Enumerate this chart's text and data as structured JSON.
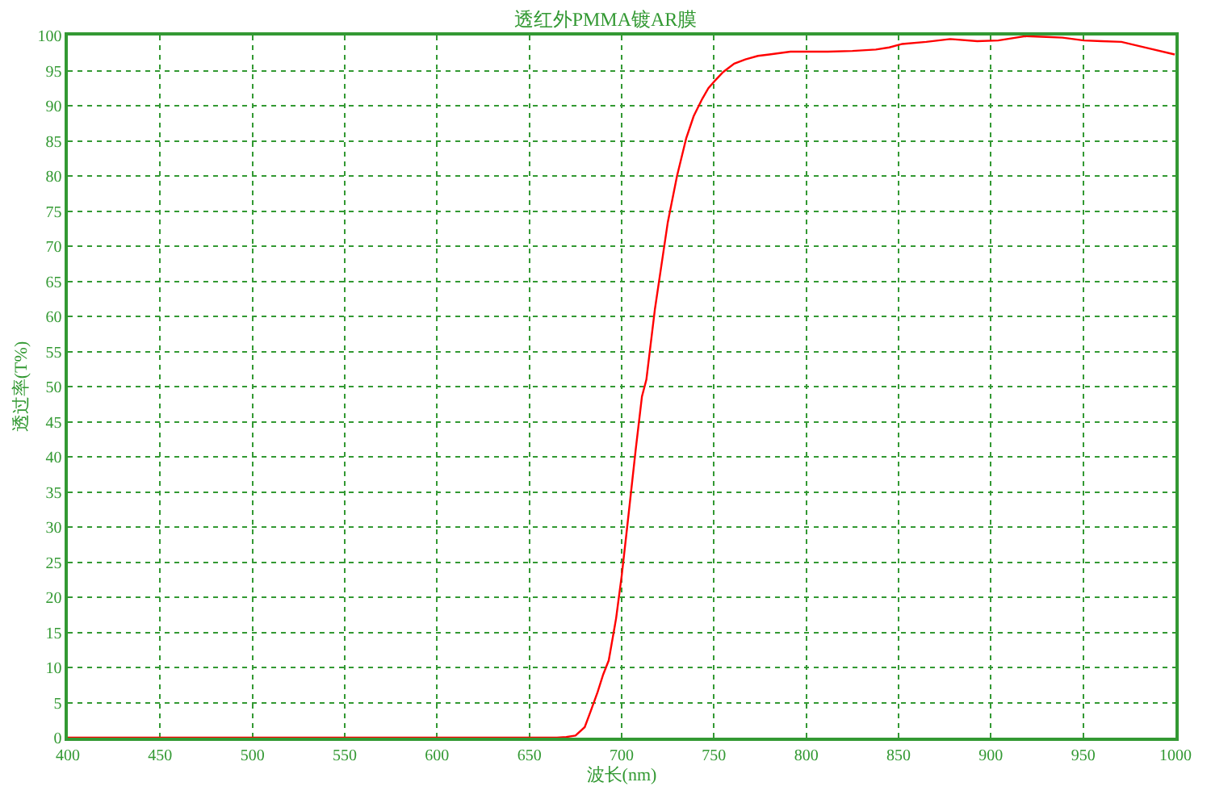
{
  "chart_data": {
    "type": "line",
    "title": "透红外PMMA镀AR膜",
    "xlabel": "波长(nm)",
    "ylabel": "透过率(T%)",
    "x": [
      400,
      450,
      500,
      550,
      600,
      650,
      665,
      670,
      675,
      680,
      683,
      687,
      690,
      693,
      697,
      700,
      703,
      707.6,
      711,
      713.4,
      718,
      725,
      730,
      735,
      739,
      743.7,
      747,
      751,
      755,
      761,
      767,
      773.8,
      780,
      791.4,
      800,
      811.7,
      825,
      837.7,
      845,
      852,
      865,
      878,
      892.6,
      904,
      918.6,
      930,
      938.8,
      950.4,
      960,
      970.7,
      985,
      999.6
    ],
    "series": [
      {
        "color": "#ff0000",
        "values": [
          0,
          0,
          0,
          0,
          0,
          0,
          0,
          0.1,
          0.3,
          1.5,
          3.6,
          6.5,
          9,
          11,
          17,
          23,
          30,
          41,
          48.6,
          51,
          61,
          73.4,
          80,
          85.4,
          88.5,
          91,
          92.5,
          93.7,
          94.8,
          96,
          96.6,
          97.1,
          97.3,
          97.7,
          97.7,
          97.7,
          97.8,
          98.0,
          98.3,
          98.8,
          99.1,
          99.5,
          99.2,
          99.3,
          99.9,
          99.8,
          99.7,
          99.3,
          99.2,
          99.1,
          98.2,
          97.3
        ]
      }
    ],
    "xlim": [
      400,
      1000
    ],
    "ylim": [
      0,
      100
    ],
    "xticks": [
      400,
      450,
      500,
      550,
      600,
      650,
      700,
      750,
      800,
      850,
      900,
      950,
      1000
    ],
    "yticks": [
      0,
      5,
      10,
      15,
      20,
      25,
      30,
      35,
      40,
      45,
      50,
      55,
      60,
      65,
      70,
      75,
      80,
      85,
      90,
      95,
      100
    ],
    "grid": true,
    "marker": "none",
    "line_style": "solid"
  }
}
